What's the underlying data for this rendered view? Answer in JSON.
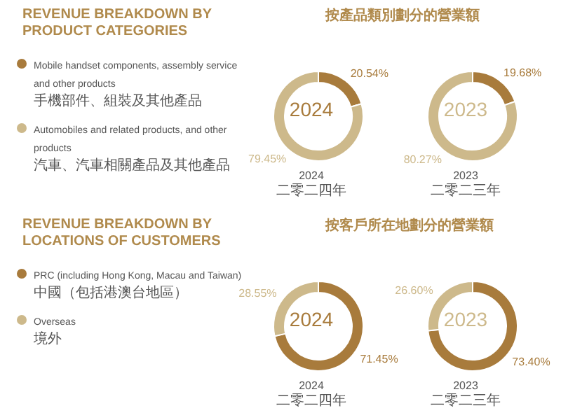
{
  "chart_data": [
    {
      "type": "donut",
      "title": "REVENUE BREAKDOWN BY PRODUCT CATEGORIES",
      "subtitle": "按產品類別劃分的營業額",
      "categories": [
        "Mobile handset components, assembly service and other products\n手機部件、組裝及其他產品",
        "Automobiles and related products, and other products\n汽車、汽車相關產品及其他產品"
      ],
      "values": [
        20.54,
        79.45
      ],
      "value_labels": [
        "20.54%",
        "79.45%"
      ],
      "colors": [
        "#a87b3c",
        "#cdb98b"
      ],
      "annotations": [
        "2024"
      ],
      "xlabel": "2024\n二零二四年",
      "legend": "left"
    },
    {
      "type": "donut",
      "categories": [
        null,
        null
      ],
      "values": [
        19.68,
        80.27
      ],
      "value_labels": [
        "19.68%",
        "80.27%"
      ],
      "colors": [
        "#a87b3c",
        "#cdb98b"
      ],
      "annotations": [
        "2023"
      ],
      "xlabel": "2023\n二零二三年"
    },
    {
      "type": "donut",
      "title": "REVENUE BREAKDOWN BY LOCATIONS OF CUSTOMERS",
      "subtitle": "按客戶所在地劃分的營業額",
      "categories": [
        "PRC (including Hong Kong, Macau and Taiwan)\n中國（包括港澳台地區）",
        "Overseas\n境外"
      ],
      "values": [
        71.45,
        28.55
      ],
      "value_labels": [
        "71.45%",
        "28.55%"
      ],
      "colors": [
        "#a87b3c",
        "#cdb98b"
      ],
      "annotations": [
        "2024"
      ],
      "xlabel": "2024\n二零二四年",
      "legend": "left"
    },
    {
      "type": "donut",
      "categories": [
        null,
        null
      ],
      "values": [
        73.4,
        26.6
      ],
      "value_labels": [
        "73.40%",
        "26.60%"
      ],
      "colors": [
        "#a87b3c",
        "#cdb98b"
      ],
      "annotations": [
        "2023"
      ],
      "xlabel": "2023\n二零二三年"
    }
  ]
}
